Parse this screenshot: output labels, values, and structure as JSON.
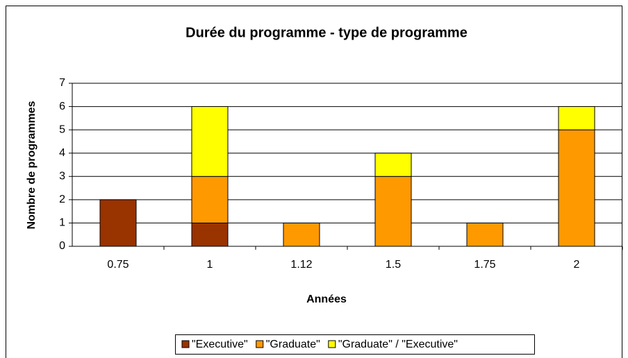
{
  "chart_data": {
    "type": "stacked_bar",
    "title": "Durée du programme - type de programme",
    "x_label": "Années",
    "y_label": "Nombre de programmes",
    "categories": [
      "0.75",
      "1",
      "1.12",
      "1.5",
      "1.75",
      "2"
    ],
    "series": [
      {
        "name": "\"Executive\"",
        "color": "#993300",
        "values": [
          2,
          1,
          0,
          0,
          0,
          0
        ]
      },
      {
        "name": "\"Graduate\"",
        "color": "#FF9900",
        "values": [
          0,
          2,
          1,
          3,
          1,
          5
        ]
      },
      {
        "name": "\"Graduate\" / \"Executive\"",
        "color": "#FFFF00",
        "values": [
          0,
          3,
          0,
          1,
          0,
          1
        ]
      }
    ],
    "ylim": [
      0,
      7
    ],
    "yticks": [
      0,
      1,
      2,
      3,
      4,
      5,
      6,
      7
    ],
    "grid": true,
    "legend": "bottom"
  }
}
